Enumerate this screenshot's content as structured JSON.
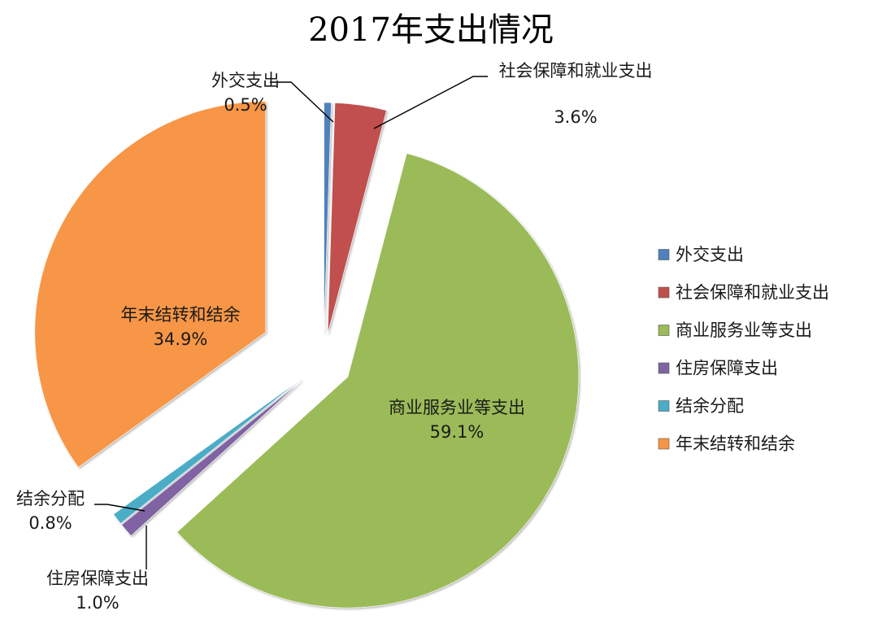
{
  "chart_data": {
    "type": "pie",
    "title": "2017年支出情况",
    "categories": [
      "外交支出",
      "社会保障和就业支出",
      "商业服务业等支出",
      "住房保障支出",
      "结余分配",
      "年末结转和结余"
    ],
    "values": [
      0.5,
      3.6,
      59.1,
      1.0,
      0.8,
      34.9
    ],
    "value_labels": [
      "0.5%",
      "3.6%",
      "59.1%",
      "1.0%",
      "0.8%",
      "34.9%"
    ],
    "unit": "%",
    "colors": [
      "#4f81bd",
      "#c0504d",
      "#9bbb59",
      "#8064a2",
      "#4bacc6",
      "#f79646"
    ],
    "exploded": true,
    "legend_position": "right",
    "label_style": "category name and percentage"
  }
}
